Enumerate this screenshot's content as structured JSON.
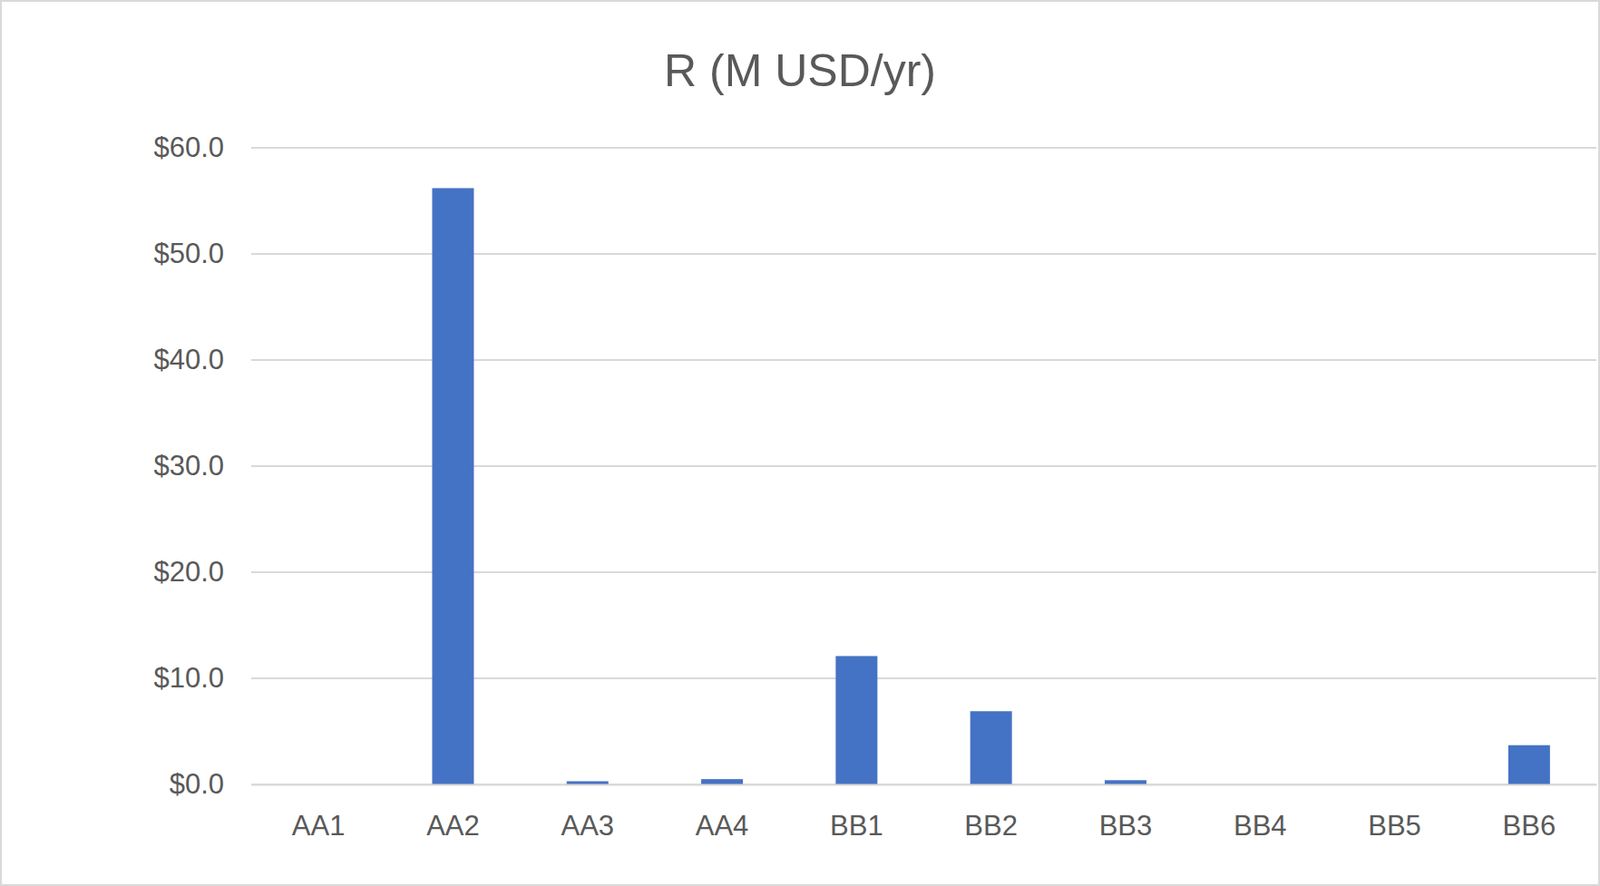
{
  "chart_data": {
    "type": "bar",
    "title": "R (M USD/yr)",
    "categories": [
      "AA1",
      "AA2",
      "AA3",
      "AA4",
      "BB1",
      "BB2",
      "BB3",
      "BB4",
      "BB5",
      "BB6"
    ],
    "values": [
      0,
      56.2,
      0.3,
      0.5,
      12.1,
      6.9,
      0.4,
      0,
      0,
      3.7
    ],
    "color": "#4472c4",
    "ylim": [
      0,
      60
    ],
    "yticks": [
      {
        "value": 0,
        "label": "$0.0"
      },
      {
        "value": 10,
        "label": "$10.0"
      },
      {
        "value": 20,
        "label": "$20.0"
      },
      {
        "value": 30,
        "label": "$30.0"
      },
      {
        "value": 40,
        "label": "$40.0"
      },
      {
        "value": 50,
        "label": "$50.0"
      },
      {
        "value": 60,
        "label": "$60.0"
      }
    ],
    "grid": true
  }
}
